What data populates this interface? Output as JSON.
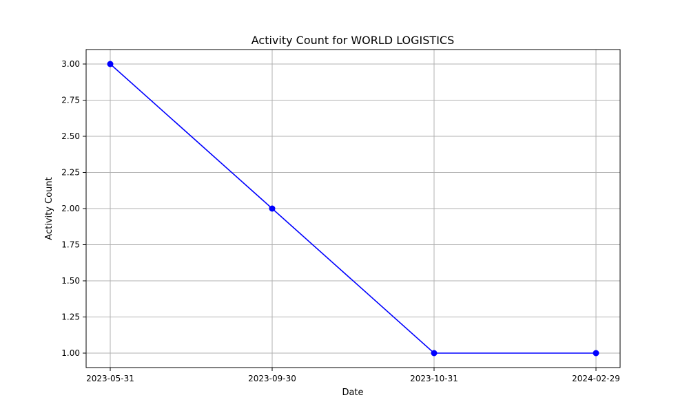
{
  "chart_data": {
    "type": "line",
    "title": "Activity Count for WORLD LOGISTICS",
    "xlabel": "Date",
    "ylabel": "Activity Count",
    "categories": [
      "2023-05-31",
      "2023-09-30",
      "2023-10-31",
      "2024-02-29"
    ],
    "series": [
      {
        "values": [
          3,
          2,
          1,
          1
        ],
        "color": "#0000ff",
        "marker": "circle"
      }
    ],
    "ylim": [
      0.9,
      3.1
    ],
    "yticks": [
      1.0,
      1.25,
      1.5,
      1.75,
      2.0,
      2.25,
      2.5,
      2.75,
      3.0
    ],
    "ytick_labels": [
      "1.00",
      "1.25",
      "1.50",
      "1.75",
      "2.00",
      "2.25",
      "2.50",
      "2.75",
      "3.00"
    ],
    "grid": true,
    "legend": false
  }
}
